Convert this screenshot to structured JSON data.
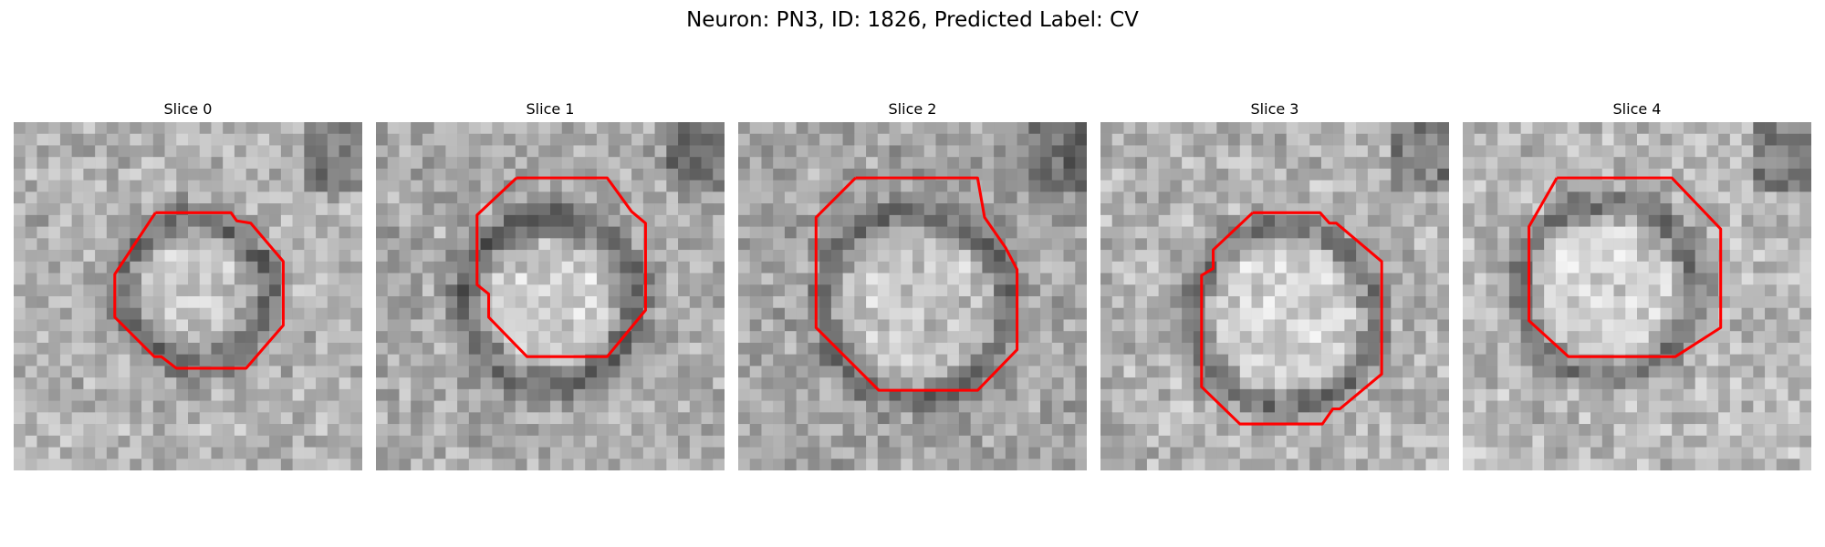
{
  "figure": {
    "title": "Neuron: PN3, ID: 1826, Predicted Label: CV"
  },
  "panels": [
    {
      "title": "Slice 0"
    },
    {
      "title": "Slice 1"
    },
    {
      "title": "Slice 2"
    },
    {
      "title": "Slice 3"
    },
    {
      "title": "Slice 4"
    }
  ],
  "colors": {
    "contour": "#ff0000",
    "background": "#ffffff"
  }
}
